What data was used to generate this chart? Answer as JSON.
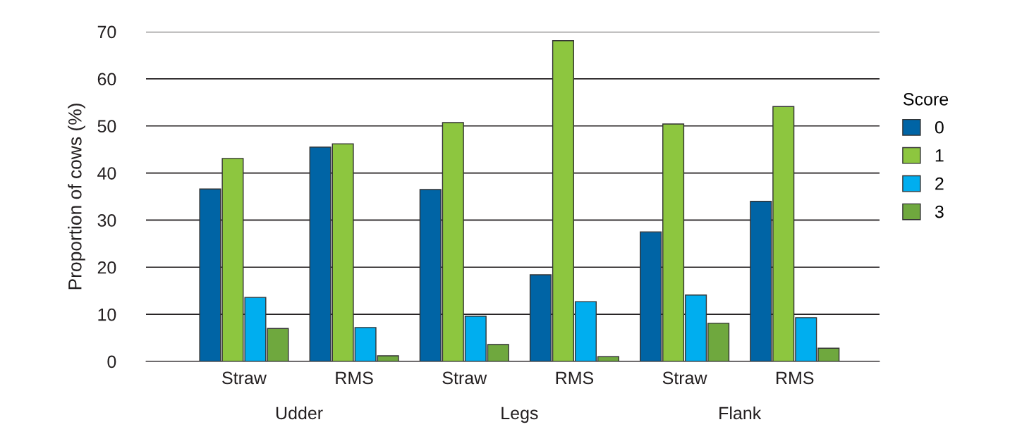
{
  "chart_data": {
    "type": "bar",
    "categories": [
      "Straw",
      "RMS",
      "Straw",
      "RMS",
      "Straw",
      "RMS"
    ],
    "series": [
      {
        "name": "0",
        "color": "#0064a5",
        "values": [
          36.6,
          45.5,
          36.5,
          18.4,
          27.5,
          34.0
        ]
      },
      {
        "name": "1",
        "color": "#8dc63f",
        "values": [
          43.1,
          46.2,
          50.7,
          68.1,
          50.4,
          54.1
        ]
      },
      {
        "name": "2",
        "color": "#00aeef",
        "values": [
          13.6,
          7.2,
          9.6,
          12.7,
          14.1,
          9.3
        ]
      },
      {
        "name": "3",
        "color": "#6fa83e",
        "values": [
          7.0,
          1.2,
          3.6,
          1.0,
          8.1,
          2.8
        ]
      }
    ],
    "ylabel": "Proportion of cows (%)",
    "legend_title": "Score",
    "annotations": [
      "Udder",
      "Legs",
      "Flank"
    ],
    "ylim": [
      0,
      70
    ],
    "yticks": [
      0,
      10,
      20,
      30,
      40,
      50,
      60,
      70
    ],
    "grid": "y",
    "legend": "right"
  }
}
